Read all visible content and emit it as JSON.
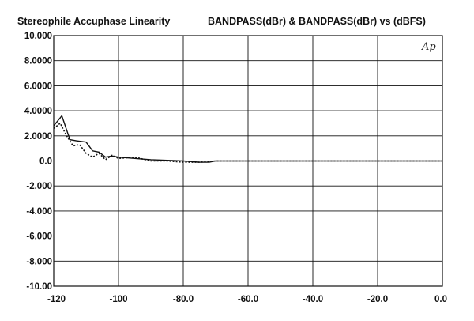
{
  "chart_data": {
    "type": "line",
    "title": "Stereophile  Accuphase Linearity",
    "subtitle": "BANDPASS(dBr)  &  BANDPASS(dBr)  vs     (dBFS)",
    "logo_text": "Ap",
    "xlabel": "",
    "ylabel": "",
    "xlim": [
      -120,
      0
    ],
    "ylim": [
      -10,
      10
    ],
    "x_ticks": [
      -120,
      -100,
      -80,
      -60,
      -40,
      -20,
      0
    ],
    "x_tick_labels": [
      "-120",
      "-100",
      "-80.0",
      "-60.0",
      "-40.0",
      "-20.0",
      "0.0"
    ],
    "y_ticks": [
      10,
      8,
      6,
      4,
      2,
      0,
      -2,
      -4,
      -6,
      -8,
      -10
    ],
    "y_tick_labels": [
      "10.000",
      "8.0000",
      "6.0000",
      "4.0000",
      "2.0000",
      "0.0",
      "-2.000",
      "-4.000",
      "-6.000",
      "-8.000",
      "-10.00"
    ],
    "grid": true,
    "colors": {
      "line": "#111111",
      "grid": "#111111",
      "background": "#ffffff"
    },
    "series": [
      {
        "style": "solid",
        "x": [
          -120,
          -117.5,
          -115,
          -113,
          -110,
          -108,
          -106,
          -104,
          -102,
          -100,
          -95,
          -90,
          -85,
          -80,
          -75,
          -72,
          -70,
          -65,
          -60,
          -40,
          -20,
          0
        ],
        "y": [
          2.8,
          3.6,
          1.7,
          1.6,
          1.5,
          0.8,
          0.7,
          0.3,
          0.4,
          0.3,
          0.2,
          0.1,
          0.05,
          0.0,
          -0.1,
          -0.1,
          0.0,
          0.0,
          0.0,
          0.0,
          0.0,
          0.0
        ]
      },
      {
        "style": "dotted",
        "x": [
          -120,
          -118,
          -116,
          -114,
          -112,
          -110,
          -108,
          -106,
          -104,
          -102,
          -100,
          -95,
          -90,
          -85,
          -80,
          -75,
          -70,
          -65,
          -60,
          -40,
          -20,
          0
        ],
        "y": [
          2.6,
          3.0,
          2.0,
          1.2,
          1.3,
          0.6,
          0.3,
          0.6,
          0.1,
          0.45,
          0.2,
          0.3,
          0.0,
          0.0,
          -0.1,
          -0.1,
          0.0,
          0.0,
          0.0,
          0.0,
          0.0,
          0.0
        ]
      }
    ]
  }
}
